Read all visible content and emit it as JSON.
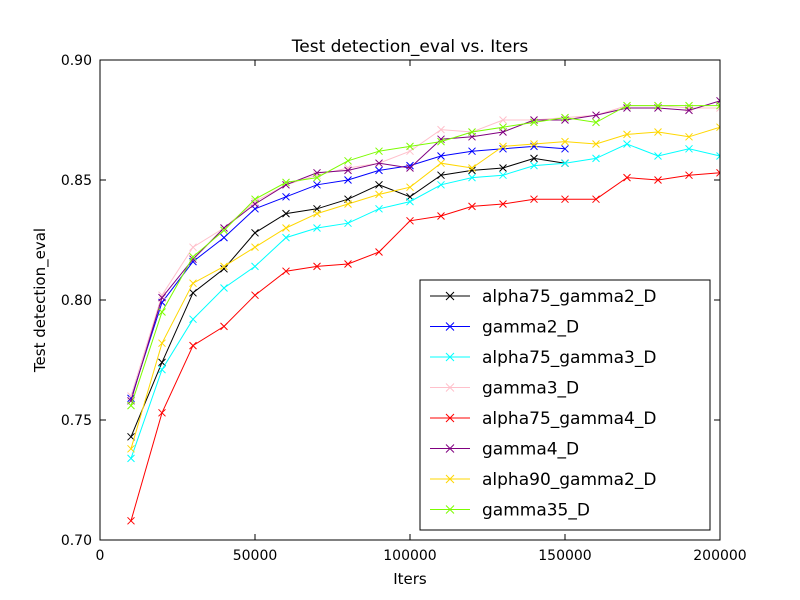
{
  "chart_data": {
    "type": "line",
    "title": "Test detection_eval  vs. Iters",
    "xlabel": "Iters",
    "ylabel": "Test detection_eval",
    "xlim": [
      0,
      200000
    ],
    "ylim": [
      0.7,
      0.9
    ],
    "xticks": [
      0,
      50000,
      100000,
      150000,
      200000
    ],
    "xtick_labels": [
      "0",
      "50000",
      "100000",
      "150000",
      "200000"
    ],
    "yticks": [
      0.7,
      0.75,
      0.8,
      0.85,
      0.9
    ],
    "ytick_labels": [
      "0.70",
      "0.75",
      "0.80",
      "0.85",
      "0.90"
    ],
    "grid": false,
    "legend_position": "lower-right",
    "marker": "x",
    "series": [
      {
        "name": "alpha75_gamma2_D",
        "color": "#000000",
        "x": [
          10000,
          20000,
          30000,
          40000,
          50000,
          60000,
          70000,
          80000,
          90000,
          100000,
          110000,
          120000,
          130000,
          140000,
          150000
        ],
        "y": [
          0.743,
          0.774,
          0.803,
          0.813,
          0.828,
          0.836,
          0.838,
          0.842,
          0.848,
          0.843,
          0.852,
          0.854,
          0.855,
          0.859,
          0.857
        ]
      },
      {
        "name": "gamma2_D",
        "color": "#0000ff",
        "x": [
          10000,
          20000,
          30000,
          40000,
          50000,
          60000,
          70000,
          80000,
          90000,
          100000,
          110000,
          120000,
          130000,
          140000,
          150000
        ],
        "y": [
          0.759,
          0.799,
          0.816,
          0.826,
          0.838,
          0.843,
          0.848,
          0.85,
          0.854,
          0.856,
          0.86,
          0.862,
          0.863,
          0.864,
          0.863
        ]
      },
      {
        "name": "alpha75_gamma3_D",
        "color": "#00ffff",
        "x": [
          10000,
          20000,
          30000,
          40000,
          50000,
          60000,
          70000,
          80000,
          90000,
          100000,
          110000,
          120000,
          130000,
          140000,
          150000,
          160000,
          170000,
          180000,
          190000,
          200000
        ],
        "y": [
          0.734,
          0.771,
          0.792,
          0.805,
          0.814,
          0.826,
          0.83,
          0.832,
          0.838,
          0.841,
          0.848,
          0.851,
          0.852,
          0.856,
          0.857,
          0.859,
          0.865,
          0.86,
          0.863,
          0.86
        ]
      },
      {
        "name": "gamma3_D",
        "color": "#ffc0cb",
        "x": [
          10000,
          20000,
          30000,
          40000,
          50000,
          60000,
          70000,
          80000,
          90000,
          100000,
          110000,
          120000,
          130000,
          140000,
          150000,
          160000,
          170000,
          180000,
          190000,
          200000
        ],
        "y": [
          0.76,
          0.802,
          0.822,
          0.83,
          0.841,
          0.848,
          0.852,
          0.855,
          0.857,
          0.862,
          0.871,
          0.87,
          0.875,
          0.875,
          0.876,
          0.877,
          0.881,
          0.881,
          0.88,
          0.88
        ]
      },
      {
        "name": "alpha75_gamma4_D",
        "color": "#ff0000",
        "x": [
          10000,
          20000,
          30000,
          40000,
          50000,
          60000,
          70000,
          80000,
          90000,
          100000,
          110000,
          120000,
          130000,
          140000,
          150000,
          160000,
          170000,
          180000,
          190000,
          200000
        ],
        "y": [
          0.708,
          0.753,
          0.781,
          0.789,
          0.802,
          0.812,
          0.814,
          0.815,
          0.82,
          0.833,
          0.835,
          0.839,
          0.84,
          0.842,
          0.842,
          0.842,
          0.851,
          0.85,
          0.852,
          0.853
        ]
      },
      {
        "name": "gamma4_D",
        "color": "#800080",
        "x": [
          10000,
          20000,
          30000,
          40000,
          50000,
          60000,
          70000,
          80000,
          90000,
          100000,
          110000,
          120000,
          130000,
          140000,
          150000,
          160000,
          170000,
          180000,
          190000,
          200000
        ],
        "y": [
          0.758,
          0.801,
          0.817,
          0.83,
          0.84,
          0.848,
          0.853,
          0.854,
          0.857,
          0.855,
          0.867,
          0.868,
          0.87,
          0.875,
          0.875,
          0.877,
          0.88,
          0.88,
          0.879,
          0.883
        ]
      },
      {
        "name": "alpha90_gamma2_D",
        "color": "#ffd700",
        "x": [
          10000,
          20000,
          30000,
          40000,
          50000,
          60000,
          70000,
          80000,
          90000,
          100000,
          110000,
          120000,
          130000,
          140000,
          150000,
          160000,
          170000,
          180000,
          190000,
          200000
        ],
        "y": [
          0.738,
          0.782,
          0.807,
          0.814,
          0.822,
          0.83,
          0.836,
          0.84,
          0.844,
          0.847,
          0.857,
          0.855,
          0.864,
          0.865,
          0.866,
          0.865,
          0.869,
          0.87,
          0.868,
          0.872
        ]
      },
      {
        "name": "gamma35_D",
        "color": "#7cfc00",
        "x": [
          10000,
          20000,
          30000,
          40000,
          50000,
          60000,
          70000,
          80000,
          90000,
          100000,
          110000,
          120000,
          130000,
          140000,
          150000,
          160000,
          170000,
          180000,
          190000,
          200000
        ],
        "y": [
          0.756,
          0.795,
          0.818,
          0.829,
          0.842,
          0.849,
          0.851,
          0.858,
          0.862,
          0.864,
          0.866,
          0.87,
          0.872,
          0.874,
          0.876,
          0.874,
          0.881,
          0.881,
          0.881,
          0.881
        ]
      }
    ]
  }
}
